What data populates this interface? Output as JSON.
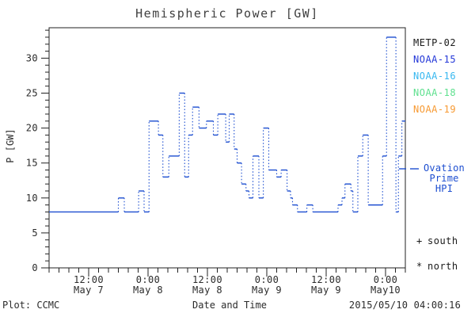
{
  "title": "Hemispheric Power [GW]",
  "footer": {
    "left": "Plot: CCMC",
    "right": "2015/05/10 04:00:16"
  },
  "legend": {
    "satellites": [
      {
        "label": "METP-02",
        "color": "#1a1a1a"
      },
      {
        "label": "NOAA-15",
        "color": "#2438d8"
      },
      {
        "label": "NOAA-16",
        "color": "#38b8f0"
      },
      {
        "label": "NOAA-18",
        "color": "#5fe08f"
      },
      {
        "label": "NOAA-19",
        "color": "#f79a33"
      }
    ],
    "line_label": "Ovation Prime HPI",
    "line_color": "#1d4ed0",
    "markers": [
      {
        "symbol": "+",
        "label": "south"
      },
      {
        "symbol": "*",
        "label": "north"
      }
    ]
  },
  "chart_data": {
    "type": "line",
    "style": "step-post",
    "title": "Hemispheric Power [GW]",
    "xlabel": "Date and Time",
    "ylabel": "P [GW]",
    "ylim": [
      0,
      34
    ],
    "yticks": [
      0,
      5,
      10,
      15,
      20,
      25,
      30
    ],
    "y_minor_step": 1,
    "x_start": "2015-05-07 04:00",
    "x_end": "2015-05-10 04:00",
    "x_range_hours": [
      0,
      72
    ],
    "x_minor_step_hours": 2,
    "xticks": [
      {
        "hour": 8,
        "time": "12:00",
        "date": "May 7"
      },
      {
        "hour": 20,
        "time": "0:00",
        "date": "May 8"
      },
      {
        "hour": 32,
        "time": "12:00",
        "date": "May 8"
      },
      {
        "hour": 44,
        "time": "0:00",
        "date": "May 9"
      },
      {
        "hour": 56,
        "time": "12:00",
        "date": "May 9"
      },
      {
        "hour": 68,
        "time": "0:00",
        "date": "May10"
      }
    ],
    "line_color": "#1d4ed0",
    "grid": false,
    "legend_position": "right",
    "series": [
      {
        "name": "Ovation Prime HPI",
        "units": "GW",
        "steps_hour_value": [
          [
            0,
            8
          ],
          [
            14.0,
            10
          ],
          [
            15.2,
            8
          ],
          [
            18.1,
            11
          ],
          [
            19.2,
            8
          ],
          [
            20.2,
            21
          ],
          [
            22.1,
            19
          ],
          [
            23.0,
            13
          ],
          [
            24.2,
            16
          ],
          [
            26.3,
            25
          ],
          [
            27.4,
            13
          ],
          [
            28.2,
            19
          ],
          [
            29.0,
            23
          ],
          [
            30.3,
            20
          ],
          [
            31.8,
            21
          ],
          [
            33.2,
            19
          ],
          [
            34.1,
            22
          ],
          [
            35.7,
            18
          ],
          [
            36.4,
            22
          ],
          [
            37.4,
            17
          ],
          [
            38.0,
            15
          ],
          [
            38.9,
            12
          ],
          [
            39.8,
            11
          ],
          [
            40.4,
            10
          ],
          [
            41.2,
            16
          ],
          [
            42.4,
            10
          ],
          [
            43.3,
            20
          ],
          [
            44.4,
            14
          ],
          [
            46.0,
            13
          ],
          [
            46.9,
            14
          ],
          [
            48.1,
            11
          ],
          [
            48.8,
            10
          ],
          [
            49.2,
            9
          ],
          [
            50.2,
            8
          ],
          [
            52.1,
            9
          ],
          [
            53.3,
            8
          ],
          [
            58.4,
            9
          ],
          [
            59.2,
            10
          ],
          [
            59.8,
            12
          ],
          [
            61.0,
            11
          ],
          [
            61.4,
            8
          ],
          [
            62.4,
            16
          ],
          [
            63.4,
            19
          ],
          [
            64.5,
            9
          ],
          [
            67.4,
            16
          ],
          [
            68.2,
            33
          ],
          [
            70.1,
            8
          ],
          [
            70.6,
            16
          ],
          [
            71.3,
            21
          ]
        ]
      }
    ]
  }
}
